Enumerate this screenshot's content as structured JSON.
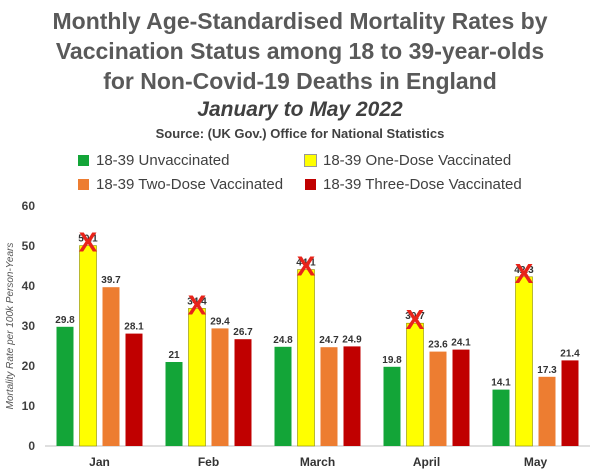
{
  "title_lines": [
    "Monthly Age-Standardised Mortality Rates by",
    "Vaccination Status among 18 to 39-year-olds",
    "for Non-Covid-19 Deaths in England"
  ],
  "subtitle": "January to May 2022",
  "source": "Source: (UK Gov.) Office for National Statistics",
  "legend": [
    {
      "label": "18-39 Unvaccinated",
      "color": "#13a538"
    },
    {
      "label": "18-39 One-Dose Vaccinated",
      "color": "#ffff00"
    },
    {
      "label": "18-39 Two-Dose Vaccinated",
      "color": "#ed7d31"
    },
    {
      "label": "18-39 Three-Dose Vaccinated",
      "color": "#c00000"
    }
  ],
  "chart_data": {
    "type": "bar",
    "ylabel": "Mortality Rate per 100k Person-Years",
    "ylim": [
      0,
      60
    ],
    "yticks": [
      0,
      10,
      20,
      30,
      40,
      50,
      60
    ],
    "categories": [
      "Jan",
      "Feb",
      "March",
      "April",
      "May"
    ],
    "series": [
      {
        "name": "18-39 Unvaccinated",
        "color": "#13a538",
        "values": [
          29.8,
          21,
          24.8,
          19.8,
          14.1
        ],
        "labels": [
          "29.8",
          "21",
          "24.8",
          "19.8",
          "14.1"
        ]
      },
      {
        "name": "18-39 One-Dose Vaccinated",
        "color": "#ffff00",
        "values": [
          50.1,
          34.4,
          44.1,
          30.7,
          42.3
        ],
        "labels": [
          "50.1",
          "34.4",
          "44.1",
          "30.7",
          "42.3"
        ]
      },
      {
        "name": "18-39 Two-Dose Vaccinated",
        "color": "#ed7d31",
        "values": [
          39.7,
          29.4,
          24.7,
          23.6,
          17.3
        ],
        "labels": [
          "39.7",
          "29.4",
          "24.7",
          "23.6",
          "17.3"
        ]
      },
      {
        "name": "18-39 Three-Dose Vaccinated",
        "color": "#c00000",
        "values": [
          28.1,
          26.7,
          24.9,
          24.1,
          21.4
        ],
        "labels": [
          "28.1",
          "26.7",
          "24.9",
          "24.1",
          "21.4"
        ]
      }
    ],
    "annotations": {
      "mark": "X",
      "color": "#e8231a",
      "series": "18-39 One-Dose Vaccinated"
    },
    "grid": false
  }
}
